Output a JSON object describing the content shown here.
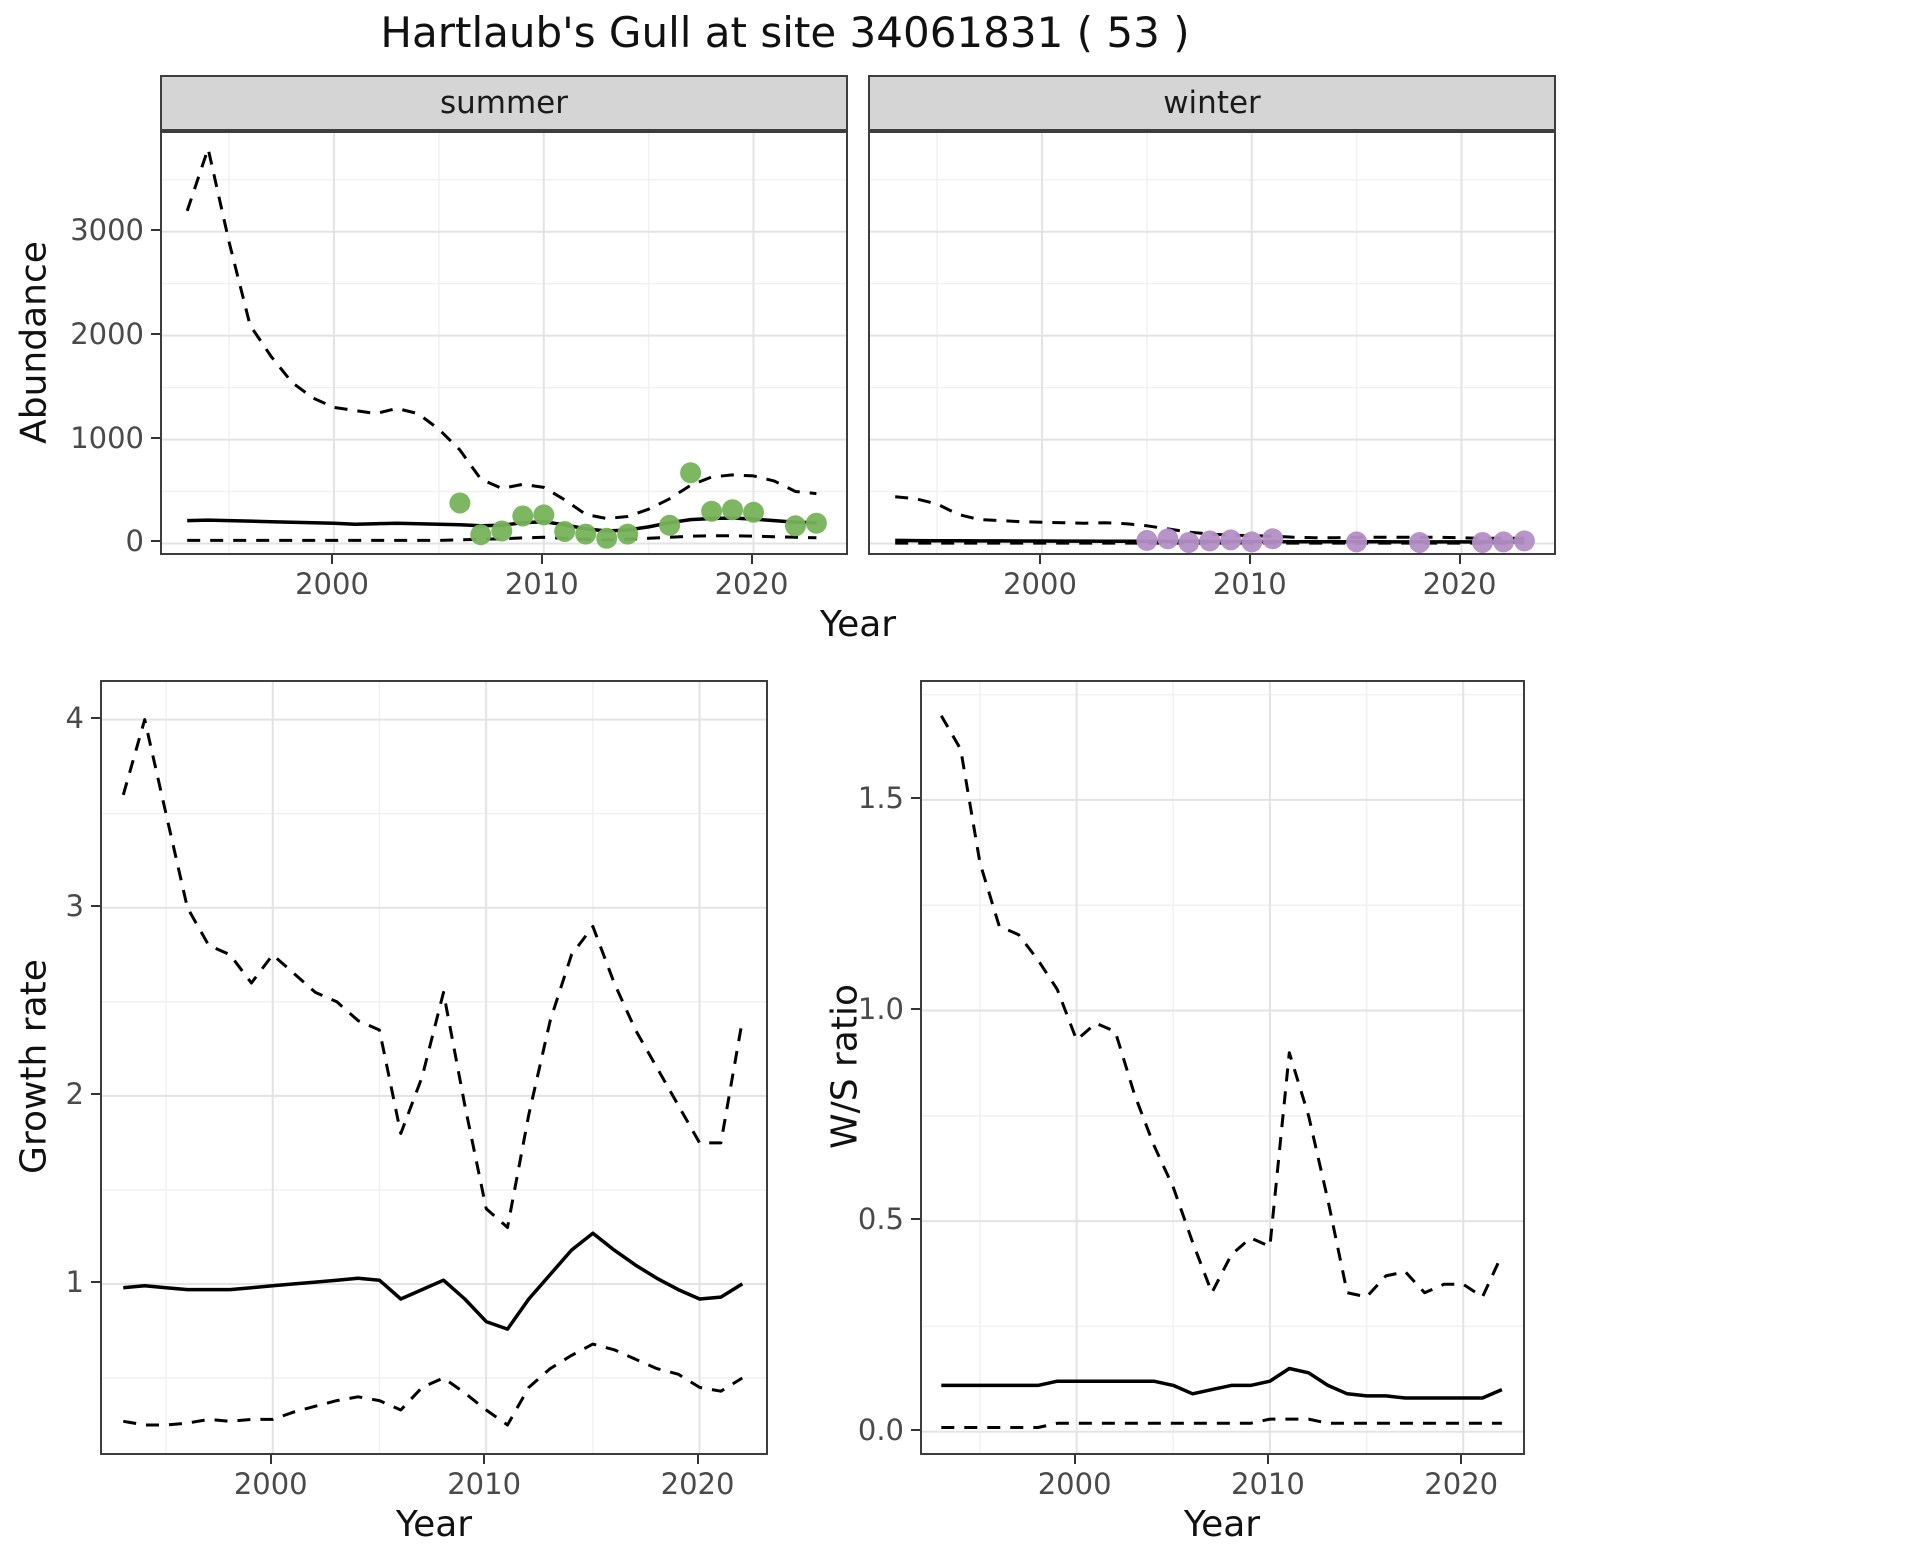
{
  "title": "Hartlaub's Gull at site 34061831 ( 53 )",
  "colors": {
    "summer_points": "#76b35a",
    "winter_points": "#b48fc6",
    "line": "#000000",
    "strip_bg": "#d5d5d5"
  },
  "chart_data": [
    {
      "id": "abundance_summer",
      "type": "line",
      "facet": "summer",
      "ylabel": "Abundance",
      "xlabel": "Year",
      "xlim": [
        1991.8,
        2024.6
      ],
      "ylim": [
        -130,
        3950
      ],
      "xticks": [
        2000,
        2010,
        2020
      ],
      "xticklabels": [
        "2000",
        "2010",
        "2020"
      ],
      "yticks": [
        0,
        1000,
        2000,
        3000
      ],
      "yticklabels": [
        "0",
        "1000",
        "2000",
        "3000"
      ],
      "xminor": [
        1995,
        2005,
        2015
      ],
      "yminor": [
        500,
        1500,
        2500,
        3500
      ],
      "series": [
        {
          "name": "upper-ci",
          "style": "dashed",
          "x": [
            1993,
            1994,
            1995,
            1996,
            1997,
            1998,
            1999,
            2000,
            2001,
            2002,
            2003,
            2004,
            2005,
            2006,
            2007,
            2008,
            2009,
            2010,
            2011,
            2012,
            2013,
            2014,
            2015,
            2016,
            2017,
            2018,
            2019,
            2020,
            2021,
            2022,
            2023
          ],
          "y": [
            3200,
            3800,
            2900,
            2100,
            1800,
            1550,
            1400,
            1310,
            1280,
            1250,
            1300,
            1250,
            1100,
            900,
            620,
            530,
            570,
            540,
            420,
            280,
            240,
            260,
            330,
            430,
            560,
            640,
            660,
            650,
            600,
            500,
            480
          ]
        },
        {
          "name": "mean",
          "style": "solid",
          "x": [
            1993,
            1994,
            1995,
            1996,
            1997,
            1998,
            1999,
            2000,
            2001,
            2002,
            2003,
            2004,
            2005,
            2006,
            2007,
            2008,
            2009,
            2010,
            2011,
            2012,
            2013,
            2014,
            2015,
            2016,
            2017,
            2018,
            2019,
            2020,
            2021,
            2022,
            2023
          ],
          "y": [
            220,
            225,
            220,
            215,
            210,
            205,
            200,
            195,
            185,
            190,
            195,
            190,
            185,
            180,
            170,
            175,
            200,
            210,
            180,
            140,
            120,
            130,
            160,
            200,
            230,
            240,
            245,
            235,
            220,
            205,
            200
          ]
        },
        {
          "name": "lower-ci",
          "style": "dashed",
          "x": [
            1993,
            1994,
            1995,
            1996,
            1997,
            1998,
            1999,
            2000,
            2001,
            2002,
            2003,
            2004,
            2005,
            2006,
            2007,
            2008,
            2009,
            2010,
            2011,
            2012,
            2013,
            2014,
            2015,
            2016,
            2017,
            2018,
            2019,
            2020,
            2021,
            2022,
            2023
          ],
          "y": [
            30,
            30,
            30,
            30,
            30,
            30,
            30,
            30,
            30,
            30,
            30,
            30,
            30,
            35,
            40,
            45,
            55,
            60,
            50,
            40,
            35,
            40,
            50,
            60,
            70,
            75,
            75,
            70,
            65,
            60,
            55
          ]
        }
      ],
      "points": {
        "name": "observed-abundance",
        "color": "#76b35a",
        "x": [
          2006,
          2007,
          2008,
          2009,
          2010,
          2011,
          2012,
          2013,
          2014,
          2016,
          2017,
          2018,
          2019,
          2020,
          2022,
          2023
        ],
        "y": [
          390,
          85,
          120,
          265,
          275,
          115,
          90,
          50,
          90,
          175,
          680,
          310,
          325,
          300,
          170,
          195
        ]
      }
    },
    {
      "id": "abundance_winter",
      "type": "line",
      "facet": "winter",
      "ylabel": "Abundance",
      "xlabel": "Year",
      "xlim": [
        1991.8,
        2024.6
      ],
      "ylim": [
        -130,
        3950
      ],
      "xticks": [
        2000,
        2010,
        2020
      ],
      "xticklabels": [
        "2000",
        "2010",
        "2020"
      ],
      "yticks": [
        0,
        1000,
        2000,
        3000
      ],
      "yticklabels": [
        "0",
        "1000",
        "2000",
        "3000"
      ],
      "xminor": [
        1995,
        2005,
        2015
      ],
      "yminor": [
        500,
        1500,
        2500,
        3500
      ],
      "series": [
        {
          "name": "upper-ci",
          "style": "dashed",
          "x": [
            1993,
            1994,
            1995,
            1996,
            1997,
            1998,
            1999,
            2000,
            2001,
            2002,
            2003,
            2004,
            2005,
            2006,
            2007,
            2008,
            2009,
            2010,
            2011,
            2012,
            2013,
            2014,
            2015,
            2016,
            2017,
            2018,
            2019,
            2020,
            2021,
            2022,
            2023
          ],
          "y": [
            450,
            430,
            380,
            280,
            230,
            220,
            210,
            205,
            200,
            195,
            200,
            190,
            170,
            140,
            110,
            90,
            80,
            75,
            70,
            60,
            55,
            55,
            60,
            60,
            60,
            60,
            60,
            55,
            50,
            50,
            50
          ]
        },
        {
          "name": "mean",
          "style": "solid",
          "x": [
            1993,
            1994,
            1995,
            1996,
            1997,
            1998,
            1999,
            2000,
            2001,
            2002,
            2003,
            2004,
            2005,
            2006,
            2007,
            2008,
            2009,
            2010,
            2011,
            2012,
            2013,
            2014,
            2015,
            2016,
            2017,
            2018,
            2019,
            2020,
            2021,
            2022,
            2023
          ],
          "y": [
            30,
            28,
            27,
            26,
            25,
            25,
            24,
            24,
            23,
            23,
            22,
            22,
            21,
            20,
            20,
            19,
            19,
            18,
            18,
            17,
            17,
            16,
            16,
            16,
            15,
            15,
            15,
            15,
            14,
            14,
            14
          ]
        },
        {
          "name": "lower-ci",
          "style": "dashed",
          "x": [
            1993,
            1994,
            1995,
            1996,
            1997,
            1998,
            1999,
            2000,
            2001,
            2002,
            2003,
            2004,
            2005,
            2006,
            2007,
            2008,
            2009,
            2010,
            2011,
            2012,
            2013,
            2014,
            2015,
            2016,
            2017,
            2018,
            2019,
            2020,
            2021,
            2022,
            2023
          ],
          "y": [
            4,
            4,
            4,
            4,
            4,
            4,
            4,
            4,
            4,
            4,
            4,
            4,
            4,
            4,
            4,
            4,
            4,
            4,
            4,
            4,
            4,
            4,
            4,
            4,
            4,
            4,
            4,
            4,
            4,
            4,
            4
          ]
        }
      ],
      "points": {
        "name": "observed-abundance",
        "color": "#b48fc6",
        "x": [
          2005,
          2006,
          2007,
          2008,
          2009,
          2010,
          2011,
          2015,
          2018,
          2021,
          2022,
          2023
        ],
        "y": [
          30,
          45,
          10,
          25,
          35,
          15,
          45,
          15,
          10,
          10,
          15,
          25
        ]
      }
    },
    {
      "id": "growth_rate",
      "type": "line",
      "facet": "",
      "ylabel": "Growth rate",
      "xlabel": "Year",
      "xlim": [
        1992,
        2023.3
      ],
      "ylim": [
        0.08,
        4.2
      ],
      "xticks": [
        2000,
        2010,
        2020
      ],
      "xticklabels": [
        "2000",
        "2010",
        "2020"
      ],
      "yticks": [
        1,
        2,
        3,
        4
      ],
      "yticklabels": [
        "1",
        "2",
        "3",
        "4"
      ],
      "xminor": [
        1995,
        2005,
        2015
      ],
      "yminor": [
        0.5,
        1.5,
        2.5,
        3.5
      ],
      "series": [
        {
          "name": "upper-ci",
          "style": "dashed",
          "x": [
            1993,
            1994,
            1995,
            1996,
            1997,
            1998,
            1999,
            2000,
            2001,
            2002,
            2003,
            2004,
            2005,
            2006,
            2007,
            2008,
            2009,
            2010,
            2011,
            2012,
            2013,
            2014,
            2015,
            2016,
            2017,
            2018,
            2019,
            2020,
            2021,
            2022
          ],
          "y": [
            3.6,
            4.0,
            3.5,
            3.0,
            2.8,
            2.75,
            2.6,
            2.75,
            2.65,
            2.55,
            2.5,
            2.4,
            2.35,
            1.8,
            2.1,
            2.55,
            1.95,
            1.4,
            1.3,
            1.9,
            2.4,
            2.75,
            2.9,
            2.6,
            2.35,
            2.15,
            1.95,
            1.75,
            1.75,
            2.4
          ]
        },
        {
          "name": "mean",
          "style": "solid",
          "x": [
            1993,
            1994,
            1995,
            1996,
            1997,
            1998,
            1999,
            2000,
            2001,
            2002,
            2003,
            2004,
            2005,
            2006,
            2007,
            2008,
            2009,
            2010,
            2011,
            2012,
            2013,
            2014,
            2015,
            2016,
            2017,
            2018,
            2019,
            2020,
            2021,
            2022
          ],
          "y": [
            0.98,
            0.99,
            0.98,
            0.97,
            0.97,
            0.97,
            0.98,
            0.99,
            1.0,
            1.01,
            1.02,
            1.03,
            1.02,
            0.92,
            0.97,
            1.02,
            0.92,
            0.8,
            0.76,
            0.92,
            1.05,
            1.18,
            1.27,
            1.18,
            1.1,
            1.03,
            0.97,
            0.92,
            0.93,
            1.0
          ]
        },
        {
          "name": "lower-ci",
          "style": "dashed",
          "x": [
            1993,
            1994,
            1995,
            1996,
            1997,
            1998,
            1999,
            2000,
            2001,
            2002,
            2003,
            2004,
            2005,
            2006,
            2007,
            2008,
            2009,
            2010,
            2011,
            2012,
            2013,
            2014,
            2015,
            2016,
            2017,
            2018,
            2019,
            2020,
            2021,
            2022
          ],
          "y": [
            0.27,
            0.25,
            0.25,
            0.26,
            0.28,
            0.27,
            0.28,
            0.28,
            0.32,
            0.35,
            0.38,
            0.4,
            0.38,
            0.33,
            0.45,
            0.5,
            0.42,
            0.33,
            0.25,
            0.45,
            0.55,
            0.62,
            0.68,
            0.65,
            0.6,
            0.55,
            0.52,
            0.45,
            0.43,
            0.5
          ]
        }
      ]
    },
    {
      "id": "ws_ratio",
      "type": "line",
      "facet": "",
      "ylabel": "W/S ratio",
      "xlabel": "Year",
      "xlim": [
        1992,
        2023.3
      ],
      "ylim": [
        -0.06,
        1.78
      ],
      "xticks": [
        2000,
        2010,
        2020
      ],
      "xticklabels": [
        "2000",
        "2010",
        "2020"
      ],
      "yticks": [
        0.0,
        0.5,
        1.0,
        1.5
      ],
      "yticklabels": [
        "0.0",
        "0.5",
        "1.0",
        "1.5"
      ],
      "xminor": [
        1995,
        2005,
        2015
      ],
      "yminor": [
        0.25,
        0.75,
        1.25,
        1.75
      ],
      "series": [
        {
          "name": "upper-ci",
          "style": "dashed",
          "x": [
            1993,
            1994,
            1995,
            1996,
            1997,
            1998,
            1999,
            2000,
            2001,
            2002,
            2003,
            2004,
            2005,
            2006,
            2007,
            2008,
            2009,
            2010,
            2011,
            2012,
            2013,
            2014,
            2015,
            2016,
            2017,
            2018,
            2019,
            2020,
            2021,
            2022
          ],
          "y": [
            1.7,
            1.62,
            1.35,
            1.2,
            1.18,
            1.12,
            1.05,
            0.93,
            0.97,
            0.95,
            0.8,
            0.68,
            0.58,
            0.45,
            0.33,
            0.42,
            0.46,
            0.44,
            0.9,
            0.75,
            0.55,
            0.33,
            0.32,
            0.37,
            0.38,
            0.33,
            0.35,
            0.35,
            0.32,
            0.42
          ]
        },
        {
          "name": "mean",
          "style": "solid",
          "x": [
            1993,
            1994,
            1995,
            1996,
            1997,
            1998,
            1999,
            2000,
            2001,
            2002,
            2003,
            2004,
            2005,
            2006,
            2007,
            2008,
            2009,
            2010,
            2011,
            2012,
            2013,
            2014,
            2015,
            2016,
            2017,
            2018,
            2019,
            2020,
            2021,
            2022
          ],
          "y": [
            0.11,
            0.11,
            0.11,
            0.11,
            0.11,
            0.11,
            0.12,
            0.12,
            0.12,
            0.12,
            0.12,
            0.12,
            0.11,
            0.09,
            0.1,
            0.11,
            0.11,
            0.12,
            0.15,
            0.14,
            0.11,
            0.09,
            0.085,
            0.085,
            0.08,
            0.08,
            0.08,
            0.08,
            0.08,
            0.1
          ]
        },
        {
          "name": "lower-ci",
          "style": "dashed",
          "x": [
            1993,
            1994,
            1995,
            1996,
            1997,
            1998,
            1999,
            2000,
            2001,
            2002,
            2003,
            2004,
            2005,
            2006,
            2007,
            2008,
            2009,
            2010,
            2011,
            2012,
            2013,
            2014,
            2015,
            2016,
            2017,
            2018,
            2019,
            2020,
            2021,
            2022
          ],
          "y": [
            0.01,
            0.01,
            0.01,
            0.01,
            0.01,
            0.01,
            0.02,
            0.02,
            0.02,
            0.02,
            0.02,
            0.02,
            0.02,
            0.02,
            0.02,
            0.02,
            0.02,
            0.03,
            0.03,
            0.03,
            0.02,
            0.02,
            0.02,
            0.02,
            0.02,
            0.02,
            0.02,
            0.02,
            0.02,
            0.02
          ]
        }
      ]
    }
  ]
}
